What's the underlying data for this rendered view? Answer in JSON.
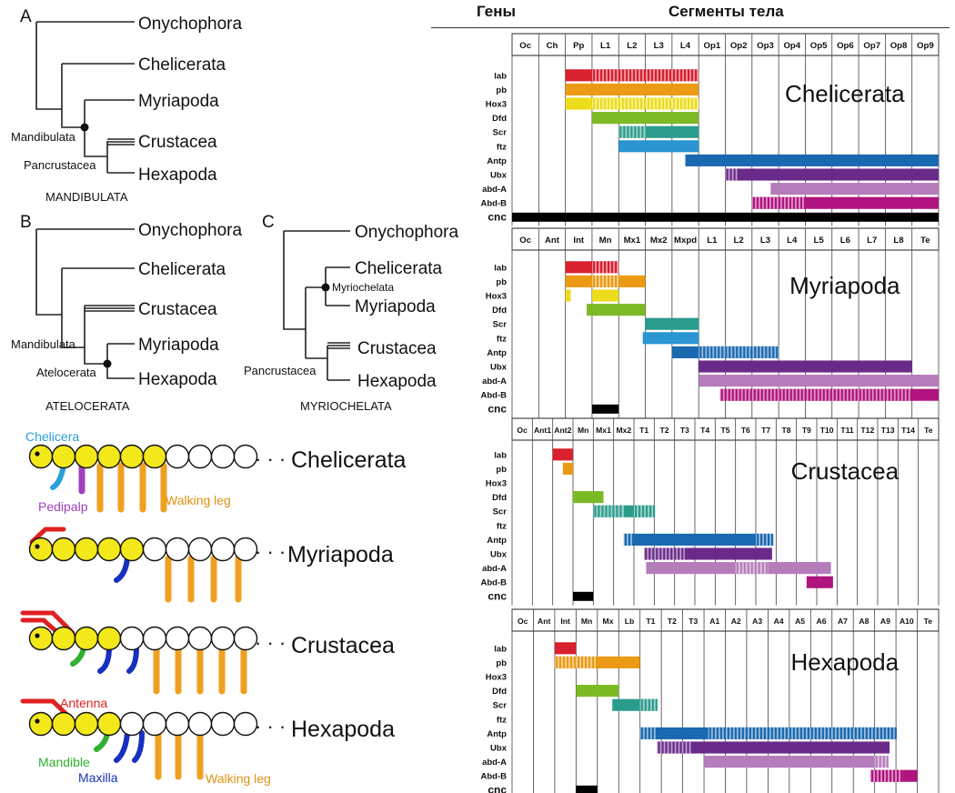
{
  "header": {
    "genes": "Гены",
    "segments": "Сегменты тела"
  },
  "trees": {
    "A": {
      "letter": "A",
      "taxa": [
        "Onychophora",
        "Chelicerata",
        "Myriapoda",
        "Crustacea",
        "Hexapoda"
      ],
      "nodes": [
        "Mandibulata",
        "Pancrustacea"
      ],
      "caption": "MANDIBULATA"
    },
    "B": {
      "letter": "B",
      "taxa": [
        "Onychophora",
        "Chelicerata",
        "Crustacea",
        "Myriapoda",
        "Hexapoda"
      ],
      "nodes": [
        "Mandibulata",
        "Atelocerata"
      ],
      "caption": "ATELOCERATA"
    },
    "C": {
      "letter": "C",
      "taxa": [
        "Onychophora",
        "Chelicerata",
        "Myriapoda",
        "Crustacea",
        "Hexapoda"
      ],
      "nodes": [
        "Myriochelata",
        "Pancrustacea"
      ],
      "caption": "MYRIOCHELATA"
    }
  },
  "body_plans": {
    "rows": [
      {
        "name": "Chelicerata"
      },
      {
        "name": "Myriapoda"
      },
      {
        "name": "Crustacea"
      },
      {
        "name": "Hexapoda"
      }
    ],
    "ellipsis": "· · ·",
    "labels": {
      "chelicera": "Chelicera",
      "pedipalp": "Pedipalp",
      "walking_leg": "Walking leg",
      "antenna": "Antenna",
      "mandible": "Mandible",
      "maxilla": "Maxilla"
    }
  },
  "colors": {
    "lab": "#d8202f",
    "pb": "#eb9a13",
    "Hox3": "#ecdc1c",
    "Dfd": "#7cba25",
    "Scr": "#2a9c8c",
    "ftz": "#2a95d0",
    "Antp": "#1a68b0",
    "Ubx": "#6a2a8a",
    "abd-A": "#b57cbc",
    "Abd-B": "#b0147e",
    "cnc": "#000000",
    "yellow_segment": "#f3e81a",
    "antenna": "#e02020",
    "chelicera_limb": "#2aa0d8",
    "pedipalp_limb": "#a040c0",
    "walking_leg": "#f0a020",
    "mandible_limb": "#30b030",
    "maxilla_limb": "#1830c0"
  },
  "panels": [
    {
      "name": "Chelicerata",
      "segments": [
        "Oc",
        "Ch",
        "Pp",
        "L1",
        "L2",
        "L3",
        "L4",
        "Op1",
        "Op2",
        "Op3",
        "Op4",
        "Op5",
        "Op6",
        "Op7",
        "Op8",
        "Op9"
      ],
      "genes": [
        {
          "gene": "lab",
          "bars": [
            [
              2,
              3,
              "s"
            ],
            [
              3,
              7,
              "h"
            ]
          ]
        },
        {
          "gene": "pb",
          "bars": [
            [
              2,
              7,
              "s"
            ]
          ]
        },
        {
          "gene": "Hox3",
          "bars": [
            [
              2,
              3,
              "s"
            ],
            [
              3,
              7,
              "h"
            ]
          ]
        },
        {
          "gene": "Dfd",
          "bars": [
            [
              3,
              7,
              "s"
            ]
          ]
        },
        {
          "gene": "Scr",
          "bars": [
            [
              4,
              5,
              "h"
            ],
            [
              5,
              7,
              "s"
            ]
          ]
        },
        {
          "gene": "ftz",
          "bars": [
            [
              4,
              7,
              "s"
            ]
          ]
        },
        {
          "gene": "Antp",
          "bars": [
            [
              6.5,
              16,
              "s"
            ]
          ]
        },
        {
          "gene": "Ubx",
          "bars": [
            [
              8,
              8.5,
              "h"
            ],
            [
              8.5,
              16,
              "s"
            ]
          ]
        },
        {
          "gene": "abd-A",
          "bars": [
            [
              9.7,
              16,
              "s"
            ]
          ]
        },
        {
          "gene": "Abd-B",
          "bars": [
            [
              9,
              11,
              "h"
            ],
            [
              11,
              16,
              "s"
            ]
          ]
        },
        {
          "gene": "cnc",
          "bars": [
            [
              0,
              16,
              "s"
            ]
          ]
        }
      ]
    },
    {
      "name": "Myriapoda",
      "segments": [
        "Oc",
        "Ant",
        "Int",
        "Mn",
        "Mx1",
        "Mx2",
        "Mxpd",
        "L1",
        "L2",
        "L3",
        "L4",
        "L5",
        "L6",
        "L7",
        "L8",
        "Te"
      ],
      "genes": [
        {
          "gene": "lab",
          "bars": [
            [
              2,
              3,
              "s"
            ],
            [
              3,
              4,
              "h"
            ]
          ]
        },
        {
          "gene": "pb",
          "bars": [
            [
              2,
              3,
              "s"
            ],
            [
              3,
              4,
              "h"
            ],
            [
              4,
              5,
              "s"
            ]
          ]
        },
        {
          "gene": "Hox3",
          "bars": [
            [
              2,
              2.2,
              "s"
            ],
            [
              3,
              4,
              "s"
            ]
          ]
        },
        {
          "gene": "Dfd",
          "bars": [
            [
              2.8,
              5,
              "s"
            ]
          ]
        },
        {
          "gene": "Scr",
          "bars": [
            [
              5,
              7,
              "s"
            ]
          ]
        },
        {
          "gene": "ftz",
          "bars": [
            [
              4.9,
              7,
              "s"
            ]
          ]
        },
        {
          "gene": "Antp",
          "bars": [
            [
              6,
              7,
              "s"
            ],
            [
              7,
              10,
              "h"
            ]
          ]
        },
        {
          "gene": "Ubx",
          "bars": [
            [
              7,
              15,
              "s"
            ]
          ]
        },
        {
          "gene": "abd-A",
          "bars": [
            [
              7,
              16,
              "s"
            ]
          ]
        },
        {
          "gene": "Abd-B",
          "bars": [
            [
              7.8,
              15,
              "h"
            ],
            [
              15,
              16,
              "s"
            ]
          ]
        },
        {
          "gene": "cnc",
          "bars": [
            [
              3,
              4,
              "s"
            ]
          ]
        }
      ]
    },
    {
      "name": "Crustacea",
      "segments": [
        "Oc",
        "Ant1",
        "Ant2",
        "Mn",
        "Mx1",
        "Mx2",
        "T1",
        "T2",
        "T3",
        "T4",
        "T5",
        "T6",
        "T7",
        "T8",
        "T9",
        "T10",
        "T11",
        "T12",
        "T13",
        "T14",
        "Te"
      ],
      "genes": [
        {
          "gene": "lab",
          "bars": [
            [
              2,
              3,
              "s"
            ]
          ]
        },
        {
          "gene": "pb",
          "bars": [
            [
              2.5,
              3,
              "s"
            ]
          ]
        },
        {
          "gene": "Hox3",
          "bars": []
        },
        {
          "gene": "Dfd",
          "bars": [
            [
              3,
              4.5,
              "s"
            ]
          ]
        },
        {
          "gene": "Scr",
          "bars": [
            [
              4,
              5.5,
              "h"
            ],
            [
              5.5,
              6,
              "s"
            ],
            [
              6,
              7,
              "h"
            ]
          ]
        },
        {
          "gene": "ftz",
          "bars": []
        },
        {
          "gene": "Antp",
          "bars": [
            [
              5.5,
              6,
              "h"
            ],
            [
              6,
              12,
              "s"
            ],
            [
              12,
              12.8,
              "h"
            ]
          ]
        },
        {
          "gene": "Ubx",
          "bars": [
            [
              6.5,
              8.5,
              "h"
            ],
            [
              8.5,
              12.8,
              "s"
            ]
          ]
        },
        {
          "gene": "abd-A",
          "bars": [
            [
              6.6,
              11,
              "s"
            ],
            [
              11,
              12.6,
              "h"
            ],
            [
              12.6,
              15.7,
              "s"
            ]
          ]
        },
        {
          "gene": "Abd-B",
          "bars": [
            [
              14.5,
              15.8,
              "s"
            ]
          ]
        },
        {
          "gene": "cnc",
          "bars": [
            [
              3,
              4,
              "s"
            ]
          ]
        }
      ]
    },
    {
      "name": "Hexapoda",
      "segments": [
        "Oc",
        "Ant",
        "Int",
        "Mn",
        "Mx",
        "Lb",
        "T1",
        "T2",
        "T3",
        "A1",
        "A2",
        "A3",
        "A4",
        "A5",
        "A6",
        "A7",
        "A8",
        "A9",
        "A10",
        "Te"
      ],
      "genes": [
        {
          "gene": "lab",
          "bars": [
            [
              2,
              3,
              "s"
            ]
          ]
        },
        {
          "gene": "pb",
          "bars": [
            [
              2,
              4,
              "h"
            ],
            [
              4,
              6,
              "s"
            ]
          ]
        },
        {
          "gene": "Hox3",
          "bars": []
        },
        {
          "gene": "Dfd",
          "bars": [
            [
              3,
              5,
              "s"
            ]
          ]
        },
        {
          "gene": "Scr",
          "bars": [
            [
              4.7,
              6,
              "s"
            ],
            [
              6,
              6.8,
              "h"
            ]
          ]
        },
        {
          "gene": "ftz",
          "bars": []
        },
        {
          "gene": "Antp",
          "bars": [
            [
              6,
              6.8,
              "h"
            ],
            [
              6.8,
              9.2,
              "s"
            ],
            [
              9.2,
              18,
              "h"
            ]
          ]
        },
        {
          "gene": "Ubx",
          "bars": [
            [
              6.8,
              8.4,
              "h"
            ],
            [
              8.4,
              17.7,
              "s"
            ]
          ]
        },
        {
          "gene": "abd-A",
          "bars": [
            [
              9,
              17,
              "s"
            ],
            [
              17,
              17.6,
              "h"
            ]
          ]
        },
        {
          "gene": "Abd-B",
          "bars": [
            [
              16.8,
              18.3,
              "h"
            ],
            [
              18.3,
              19,
              "s"
            ]
          ]
        },
        {
          "gene": "cnc",
          "bars": [
            [
              3,
              4,
              "s"
            ]
          ]
        }
      ]
    }
  ]
}
